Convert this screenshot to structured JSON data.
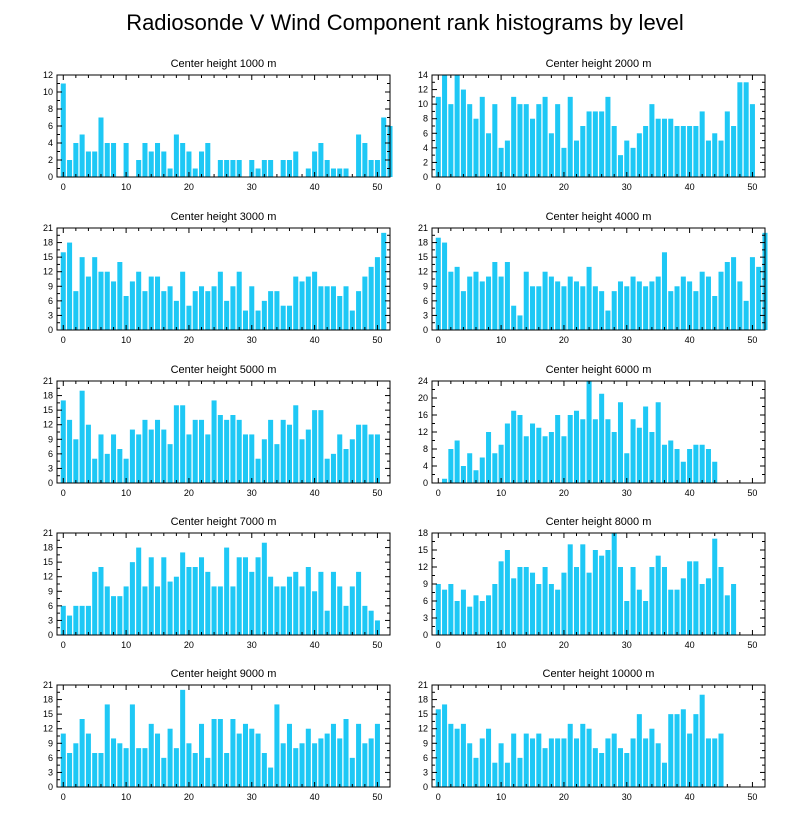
{
  "chart_data": {
    "type": "bar",
    "title": "Radiosonde V Wind Component rank histograms by level",
    "bar_color": "#1ec8f5",
    "xlim": [
      -1,
      52
    ],
    "x_ticks": [
      0,
      10,
      20,
      30,
      40,
      50
    ],
    "panels": [
      {
        "title": "Center height 1000 m",
        "ylim": [
          0,
          12
        ],
        "y_ticks": [
          0,
          2,
          4,
          6,
          8,
          10,
          12
        ],
        "values": [
          11,
          2,
          4,
          5,
          3,
          3,
          7,
          4,
          4,
          0,
          4,
          0,
          2,
          4,
          3,
          4,
          3,
          1,
          5,
          4,
          3,
          1,
          3,
          4,
          0,
          2,
          2,
          2,
          2,
          0,
          2,
          1,
          2,
          2,
          0,
          2,
          2,
          3,
          0,
          1,
          3,
          4,
          2,
          1,
          1,
          1,
          0,
          5,
          4,
          2,
          2,
          7,
          6
        ]
      },
      {
        "title": "Center height 2000 m",
        "ylim": [
          0,
          14
        ],
        "y_ticks": [
          0,
          2,
          4,
          6,
          8,
          10,
          12,
          14
        ],
        "values": [
          11,
          14,
          10,
          14,
          12,
          10,
          8,
          11,
          6,
          10,
          4,
          5,
          11,
          10,
          10,
          8,
          10,
          11,
          6,
          10,
          4,
          11,
          5,
          7,
          9,
          9,
          9,
          11,
          7,
          3,
          5,
          4,
          6,
          7,
          10,
          8,
          8,
          8,
          7,
          7,
          7,
          7,
          9,
          5,
          6,
          5,
          9,
          7,
          13,
          13,
          10
        ]
      },
      {
        "title": "Center height 3000 m",
        "ylim": [
          0,
          21
        ],
        "y_ticks": [
          0,
          3,
          6,
          9,
          12,
          15,
          18,
          21
        ],
        "values": [
          16,
          18,
          8,
          15,
          11,
          15,
          12,
          12,
          10,
          14,
          7,
          10,
          12,
          8,
          11,
          11,
          8,
          9,
          6,
          12,
          5,
          8,
          9,
          8,
          9,
          12,
          6,
          9,
          12,
          4,
          9,
          4,
          6,
          8,
          8,
          5,
          5,
          11,
          10,
          11,
          12,
          9,
          9,
          9,
          7,
          9,
          4,
          8,
          11,
          13,
          15,
          20
        ]
      },
      {
        "title": "Center height 4000 m",
        "ylim": [
          0,
          21
        ],
        "y_ticks": [
          0,
          3,
          6,
          9,
          12,
          15,
          18,
          21
        ],
        "values": [
          19,
          18,
          12,
          13,
          8,
          11,
          12,
          10,
          11,
          14,
          11,
          14,
          5,
          3,
          12,
          9,
          9,
          12,
          11,
          10,
          9,
          11,
          10,
          9,
          13,
          9,
          8,
          4,
          8,
          10,
          9,
          11,
          10,
          9,
          10,
          11,
          16,
          8,
          9,
          11,
          10,
          8,
          12,
          11,
          7,
          12,
          14,
          15,
          10,
          6,
          15,
          13,
          20
        ]
      },
      {
        "title": "Center height 5000 m",
        "ylim": [
          0,
          21
        ],
        "y_ticks": [
          0,
          3,
          6,
          9,
          12,
          15,
          18,
          21
        ],
        "values": [
          17,
          13,
          9,
          19,
          12,
          5,
          10,
          6,
          10,
          7,
          5,
          11,
          10,
          13,
          11,
          13,
          11,
          8,
          16,
          16,
          10,
          13,
          13,
          10,
          17,
          14,
          13,
          14,
          13,
          10,
          10,
          5,
          9,
          13,
          8,
          13,
          12,
          16,
          9,
          11,
          15,
          15,
          5,
          6,
          10,
          7,
          9,
          12,
          12,
          10,
          10
        ]
      },
      {
        "title": "Center height 6000 m",
        "ylim": [
          0,
          24
        ],
        "y_ticks": [
          0,
          4,
          8,
          12,
          16,
          20,
          24
        ],
        "values": [
          0,
          1,
          8,
          10,
          4,
          7,
          3,
          6,
          12,
          7,
          9,
          14,
          17,
          16,
          11,
          14,
          13,
          11,
          12,
          16,
          11,
          16,
          17,
          15,
          24,
          15,
          21,
          15,
          12,
          19,
          7,
          15,
          13,
          18,
          12,
          19,
          9,
          10,
          8,
          5,
          8,
          9,
          9,
          8,
          5
        ]
      },
      {
        "title": "Center height 7000 m",
        "ylim": [
          0,
          21
        ],
        "y_ticks": [
          0,
          3,
          6,
          9,
          12,
          15,
          18,
          21
        ],
        "values": [
          6,
          4,
          6,
          6,
          6,
          13,
          14,
          10,
          8,
          8,
          10,
          15,
          18,
          10,
          16,
          10,
          16,
          11,
          12,
          17,
          14,
          14,
          16,
          13,
          10,
          10,
          18,
          10,
          16,
          16,
          13,
          16,
          19,
          12,
          10,
          10,
          12,
          13,
          10,
          14,
          9,
          13,
          5,
          13,
          10,
          6,
          10,
          13,
          6,
          5,
          3
        ]
      },
      {
        "title": "Center height 8000 m",
        "ylim": [
          0,
          18
        ],
        "y_ticks": [
          0,
          3,
          6,
          9,
          12,
          15,
          18
        ],
        "values": [
          9,
          8,
          9,
          6,
          8,
          5,
          7,
          6,
          7,
          9,
          13,
          15,
          10,
          12,
          12,
          11,
          9,
          12,
          9,
          8,
          11,
          16,
          12,
          16,
          11,
          15,
          14,
          15,
          18,
          12,
          6,
          12,
          8,
          6,
          12,
          14,
          12,
          8,
          8,
          10,
          13,
          13,
          9,
          10,
          17,
          12,
          7,
          9
        ]
      },
      {
        "title": "Center height 9000 m",
        "ylim": [
          0,
          21
        ],
        "y_ticks": [
          0,
          3,
          6,
          9,
          12,
          15,
          18,
          21
        ],
        "values": [
          11,
          7,
          9,
          14,
          11,
          7,
          7,
          17,
          10,
          9,
          8,
          17,
          8,
          8,
          13,
          11,
          6,
          12,
          8,
          20,
          9,
          7,
          13,
          6,
          14,
          14,
          7,
          14,
          11,
          13,
          12,
          11,
          7,
          4,
          17,
          9,
          13,
          8,
          9,
          12,
          9,
          10,
          11,
          13,
          10,
          14,
          6,
          13,
          9,
          10,
          13
        ]
      },
      {
        "title": "Center height 10000 m",
        "ylim": [
          0,
          21
        ],
        "y_ticks": [
          0,
          3,
          6,
          9,
          12,
          15,
          18,
          21
        ],
        "values": [
          16,
          17,
          13,
          12,
          13,
          9,
          6,
          10,
          12,
          5,
          9,
          5,
          11,
          6,
          11,
          10,
          11,
          8,
          10,
          10,
          10,
          13,
          10,
          13,
          12,
          8,
          7,
          10,
          11,
          8,
          7,
          10,
          15,
          10,
          12,
          9,
          5,
          15,
          15,
          16,
          11,
          15,
          19,
          10,
          10,
          11
        ]
      }
    ]
  }
}
